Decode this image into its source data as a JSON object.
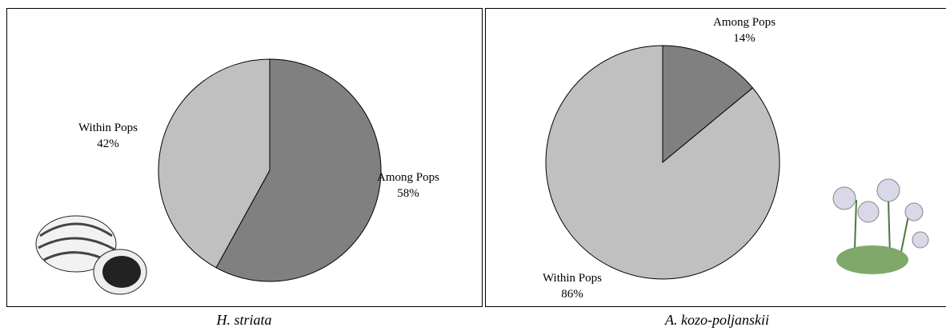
{
  "chart_data": [
    {
      "type": "pie",
      "caption": "H. striata",
      "categories": [
        "Among Pops",
        "Within Pops"
      ],
      "values": [
        58,
        42
      ],
      "value_labels": [
        "58%",
        "42%"
      ],
      "colors": [
        "#808080",
        "#c0c0c0"
      ]
    },
    {
      "type": "pie",
      "caption": "A. kozo-poljanskii",
      "categories": [
        "Among Pops",
        "Within Pops"
      ],
      "values": [
        14,
        86
      ],
      "value_labels": [
        "14%",
        "86%"
      ],
      "colors": [
        "#808080",
        "#c0c0c0"
      ]
    }
  ]
}
